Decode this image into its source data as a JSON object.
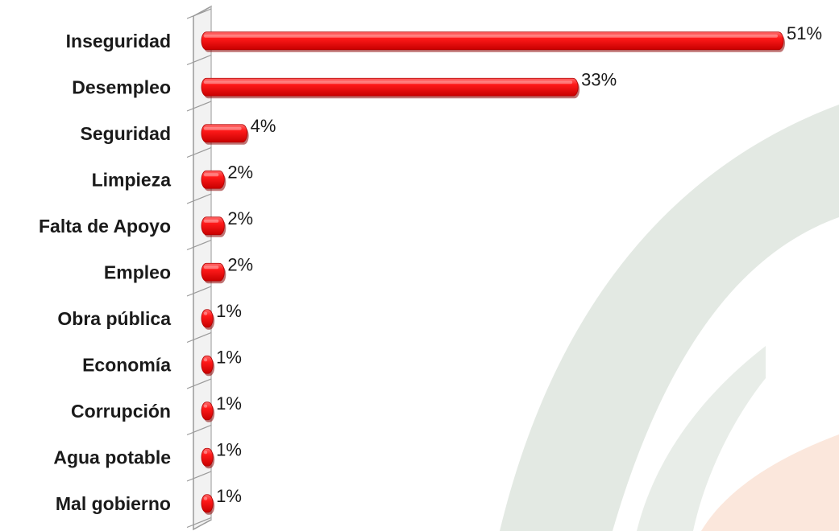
{
  "chart_data": {
    "type": "bar",
    "orientation": "horizontal",
    "categories": [
      "Inseguridad",
      "Desempleo",
      "Seguridad",
      "Limpieza",
      "Falta de Apoyo",
      "Empleo",
      "Obra pública",
      "Economía",
      "Corrupción",
      "Agua potable",
      "Mal gobierno"
    ],
    "values": [
      51,
      33,
      4,
      2,
      2,
      2,
      1,
      1,
      1,
      1,
      1
    ],
    "value_labels": [
      "51%",
      "33%",
      "4%",
      "2%",
      "2%",
      "2%",
      "1%",
      "1%",
      "1%",
      "1%",
      "1%"
    ],
    "unit": "%",
    "xlim": [
      0,
      51
    ],
    "grid": false,
    "legend": "none",
    "colors": {
      "bar": "#ff0000",
      "bar_dark": "#b00000",
      "bar_light": "#ff6a6a",
      "axis": "#9a9a9a",
      "watermark_green": "#dfe6df",
      "watermark_orange": "#fbe6da"
    }
  }
}
